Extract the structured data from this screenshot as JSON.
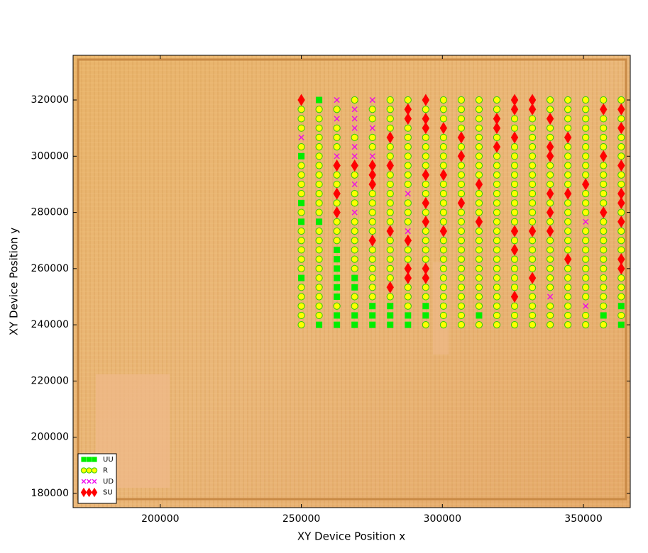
{
  "chart_data": {
    "type": "scatter",
    "x_label": "XY Device  Position  x",
    "y_label": "XY Device  Position  y",
    "xlim": [
      169100,
      366600
    ],
    "ylim": [
      174950,
      335900
    ],
    "xticks": [
      200000,
      250000,
      300000,
      350000
    ],
    "yticks": [
      180000,
      200000,
      220000,
      240000,
      260000,
      280000,
      300000,
      320000
    ],
    "legend": "lower left",
    "series": [
      {
        "name": "UU",
        "color": "#00ee00",
        "marker": "s",
        "x": [
          250000,
          250000,
          250000,
          250000,
          256300,
          256300,
          256300,
          262600,
          262600,
          262600,
          262600,
          262600,
          262600,
          262600,
          262600,
          268900,
          268900,
          268900,
          268900,
          275200,
          275200,
          275200,
          281500,
          281500,
          281500,
          287800,
          287800,
          294100,
          294100,
          313000,
          357100,
          363400,
          363400
        ],
        "y": [
          300000,
          283333,
          276667,
          256667,
          320000,
          276667,
          240000,
          266667,
          263333,
          260000,
          256667,
          253333,
          250000,
          243333,
          240000,
          256667,
          253333,
          243333,
          240000,
          246667,
          243333,
          240000,
          246667,
          243333,
          240000,
          243333,
          240000,
          246667,
          243333,
          243333,
          243333,
          246667,
          240000
        ]
      },
      {
        "name": "R",
        "color": "#ffff00",
        "edgecolor": "#33cc00",
        "marker": "o",
        "x": [
          250000,
          250000,
          250000,
          250000,
          250000,
          250000,
          250000,
          250000,
          250000,
          250000,
          250000,
          250000,
          250000,
          250000,
          250000,
          250000,
          250000,
          250000,
          250000,
          256300,
          256300,
          256300,
          256300,
          256300,
          256300,
          256300,
          256300,
          256300,
          256300,
          256300,
          256300,
          256300,
          256300,
          256300,
          256300,
          256300,
          256300,
          256300,
          256300,
          256300,
          256300,
          262600,
          262600,
          262600,
          262600,
          262600,
          262600,
          262600,
          262600,
          262600,
          262600,
          262600,
          268900,
          268900,
          268900,
          268900,
          268900,
          268900,
          268900,
          268900,
          268900,
          268900,
          268900,
          268900,
          268900,
          275200,
          275200,
          275200,
          275200,
          275200,
          275200,
          275200,
          275200,
          275200,
          275200,
          275200,
          275200,
          275200,
          275200,
          275200,
          281500,
          281500,
          281500,
          281500,
          281500,
          281500,
          281500,
          281500,
          281500,
          281500,
          281500,
          281500,
          281500,
          281500,
          281500,
          281500,
          281500,
          281500,
          287800,
          287800,
          287800,
          287800,
          287800,
          287800,
          287800,
          287800,
          287800,
          287800,
          287800,
          287800,
          287800,
          287800,
          287800,
          287800,
          294100,
          294100,
          294100,
          294100,
          294100,
          294100,
          294100,
          294100,
          294100,
          294100,
          294100,
          294100,
          294100,
          294100,
          294100,
          300400,
          300400,
          300400,
          300400,
          300400,
          300400,
          300400,
          300400,
          300400,
          300400,
          300400,
          300400,
          300400,
          300400,
          300400,
          300400,
          300400,
          300400,
          300400,
          300400,
          300400,
          300400,
          306700,
          306700,
          306700,
          306700,
          306700,
          306700,
          306700,
          306700,
          306700,
          306700,
          306700,
          306700,
          306700,
          306700,
          306700,
          306700,
          306700,
          306700,
          306700,
          306700,
          306700,
          306700,
          313000,
          313000,
          313000,
          313000,
          313000,
          313000,
          313000,
          313000,
          313000,
          313000,
          313000,
          313000,
          313000,
          313000,
          313000,
          313000,
          313000,
          313000,
          313000,
          313000,
          313000,
          313000,
          319300,
          319300,
          319300,
          319300,
          319300,
          319300,
          319300,
          319300,
          319300,
          319300,
          319300,
          319300,
          319300,
          319300,
          319300,
          319300,
          319300,
          319300,
          319300,
          319300,
          319300,
          319300,
          325600,
          325600,
          325600,
          325600,
          325600,
          325600,
          325600,
          325600,
          325600,
          325600,
          325600,
          325600,
          325600,
          325600,
          325600,
          325600,
          325600,
          325600,
          325600,
          331900,
          331900,
          331900,
          331900,
          331900,
          331900,
          331900,
          331900,
          331900,
          331900,
          331900,
          331900,
          331900,
          331900,
          331900,
          331900,
          331900,
          331900,
          331900,
          331900,
          331900,
          338200,
          338200,
          338200,
          338200,
          338200,
          338200,
          338200,
          338200,
          338200,
          338200,
          338200,
          338200,
          338200,
          338200,
          338200,
          338200,
          338200,
          338200,
          344500,
          344500,
          344500,
          344500,
          344500,
          344500,
          344500,
          344500,
          344500,
          344500,
          344500,
          344500,
          344500,
          344500,
          344500,
          344500,
          344500,
          344500,
          344500,
          344500,
          344500,
          344500,
          350800,
          350800,
          350800,
          350800,
          350800,
          350800,
          350800,
          350800,
          350800,
          350800,
          350800,
          350800,
          350800,
          350800,
          350800,
          350800,
          350800,
          350800,
          350800,
          350800,
          350800,
          350800,
          357100,
          357100,
          357100,
          357100,
          357100,
          357100,
          357100,
          357100,
          357100,
          357100,
          357100,
          357100,
          357100,
          357100,
          357100,
          357100,
          357100,
          357100,
          357100,
          357100,
          357100,
          363400,
          363400,
          363400,
          363400,
          363400,
          363400,
          363400,
          363400,
          363400,
          363400,
          363400,
          363400,
          363400,
          363400,
          363400
        ],
        "y": [
          316667,
          313333,
          310000,
          303333,
          296667,
          293333,
          290000,
          286667,
          280000,
          273333,
          270000,
          266667,
          263333,
          260000,
          253333,
          250000,
          246667,
          243333,
          240000,
          316667,
          313333,
          310000,
          306667,
          303333,
          300000,
          296667,
          293333,
          290000,
          286667,
          283333,
          280000,
          273333,
          270000,
          266667,
          263333,
          260000,
          256667,
          253333,
          250000,
          246667,
          243333,
          316667,
          310000,
          306667,
          303333,
          293333,
          290000,
          283333,
          276667,
          273333,
          270000,
          246667,
          320000,
          306667,
          293333,
          286667,
          283333,
          276667,
          273333,
          270000,
          266667,
          263333,
          260000,
          250000,
          246667,
          316667,
          313333,
          306667,
          303333,
          286667,
          283333,
          280000,
          276667,
          273333,
          266667,
          263333,
          260000,
          256667,
          253333,
          250000,
          320000,
          316667,
          313333,
          310000,
          303333,
          300000,
          293333,
          290000,
          286667,
          283333,
          280000,
          276667,
          270000,
          266667,
          263333,
          260000,
          256667,
          250000,
          320000,
          310000,
          306667,
          303333,
          300000,
          296667,
          293333,
          290000,
          283333,
          280000,
          276667,
          266667,
          263333,
          253333,
          250000,
          246667,
          316667,
          306667,
          303333,
          300000,
          296667,
          290000,
          286667,
          280000,
          273333,
          270000,
          266667,
          263333,
          253333,
          250000,
          240000,
          320000,
          316667,
          313333,
          306667,
          303333,
          300000,
          296667,
          290000,
          286667,
          283333,
          280000,
          276667,
          270000,
          266667,
          263333,
          260000,
          256667,
          253333,
          250000,
          246667,
          243333,
          240000,
          320000,
          316667,
          313333,
          310000,
          303333,
          296667,
          293333,
          290000,
          286667,
          280000,
          276667,
          273333,
          270000,
          266667,
          263333,
          260000,
          256667,
          253333,
          250000,
          246667,
          243333,
          240000,
          320000,
          316667,
          313333,
          310000,
          306667,
          303333,
          300000,
          296667,
          293333,
          286667,
          283333,
          280000,
          273333,
          270000,
          266667,
          263333,
          260000,
          256667,
          253333,
          250000,
          246667,
          240000,
          320000,
          316667,
          306667,
          300000,
          296667,
          293333,
          290000,
          286667,
          283333,
          280000,
          276667,
          273333,
          270000,
          266667,
          263333,
          260000,
          256667,
          253333,
          250000,
          246667,
          243333,
          240000,
          313333,
          310000,
          303333,
          300000,
          296667,
          293333,
          290000,
          286667,
          283333,
          280000,
          276667,
          270000,
          263333,
          260000,
          256667,
          253333,
          246667,
          243333,
          240000,
          313333,
          310000,
          306667,
          303333,
          300000,
          296667,
          293333,
          290000,
          286667,
          283333,
          280000,
          276667,
          270000,
          266667,
          263333,
          260000,
          253333,
          250000,
          246667,
          243333,
          240000,
          320000,
          316667,
          310000,
          306667,
          296667,
          293333,
          290000,
          283333,
          276667,
          270000,
          266667,
          263333,
          260000,
          256667,
          253333,
          246667,
          243333,
          240000,
          320000,
          316667,
          313333,
          310000,
          303333,
          300000,
          296667,
          293333,
          290000,
          283333,
          280000,
          276667,
          273333,
          270000,
          266667,
          260000,
          256667,
          253333,
          250000,
          246667,
          243333,
          240000,
          320000,
          316667,
          313333,
          310000,
          306667,
          303333,
          300000,
          296667,
          293333,
          286667,
          283333,
          280000,
          273333,
          270000,
          266667,
          263333,
          260000,
          256667,
          253333,
          250000,
          243333,
          240000,
          320000,
          313333,
          310000,
          306667,
          303333,
          296667,
          293333,
          290000,
          286667,
          283333,
          276667,
          273333,
          270000,
          266667,
          263333,
          260000,
          256667,
          253333,
          250000,
          246667,
          240000,
          320000,
          313333,
          306667,
          303333,
          300000,
          293333,
          290000,
          280000,
          273333,
          270000,
          266667,
          256667,
          253333,
          250000,
          243333
        ]
      },
      {
        "name": "UD",
        "color": "#ee00ee",
        "marker": "x",
        "x": [
          250000,
          262600,
          262600,
          262600,
          268900,
          268900,
          268900,
          268900,
          268900,
          268900,
          268900,
          275200,
          275200,
          275200,
          287800,
          287800,
          338200,
          350800,
          350800
        ],
        "y": [
          306667,
          320000,
          313333,
          300000,
          316667,
          313333,
          310000,
          303333,
          300000,
          290000,
          280000,
          320000,
          310000,
          300000,
          286667,
          273333,
          250000,
          276667,
          246667
        ]
      },
      {
        "name": "SU",
        "color": "#ff0000",
        "marker": "d",
        "x": [
          250000,
          262600,
          262600,
          262600,
          268900,
          275200,
          275200,
          275200,
          275200,
          281500,
          281500,
          281500,
          281500,
          287800,
          287800,
          287800,
          287800,
          287800,
          294100,
          294100,
          294100,
          294100,
          294100,
          294100,
          294100,
          294100,
          300400,
          300400,
          300400,
          306700,
          306700,
          306700,
          313000,
          313000,
          319300,
          319300,
          319300,
          325600,
          325600,
          325600,
          325600,
          325600,
          325600,
          331900,
          331900,
          331900,
          331900,
          338200,
          338200,
          338200,
          338200,
          338200,
          338200,
          344500,
          344500,
          344500,
          350800,
          357100,
          357100,
          357100,
          363400,
          363400,
          363400,
          363400,
          363400,
          363400,
          363400,
          363400
        ],
        "y": [
          320000,
          296667,
          286667,
          280000,
          296667,
          296667,
          293333,
          290000,
          270000,
          306667,
          296667,
          273333,
          253333,
          316667,
          313333,
          270000,
          260000,
          256667,
          320000,
          313333,
          310000,
          293333,
          283333,
          276667,
          260000,
          256667,
          310000,
          293333,
          273333,
          306667,
          300000,
          283333,
          290000,
          276667,
          313333,
          310000,
          303333,
          320000,
          316667,
          306667,
          273333,
          266667,
          250000,
          320000,
          316667,
          273333,
          256667,
          313333,
          303333,
          300000,
          286667,
          280000,
          273333,
          306667,
          286667,
          263333,
          290000,
          316667,
          300000,
          280000,
          316667,
          310000,
          296667,
          286667,
          283333,
          276667,
          263333,
          260000
        ]
      }
    ]
  }
}
